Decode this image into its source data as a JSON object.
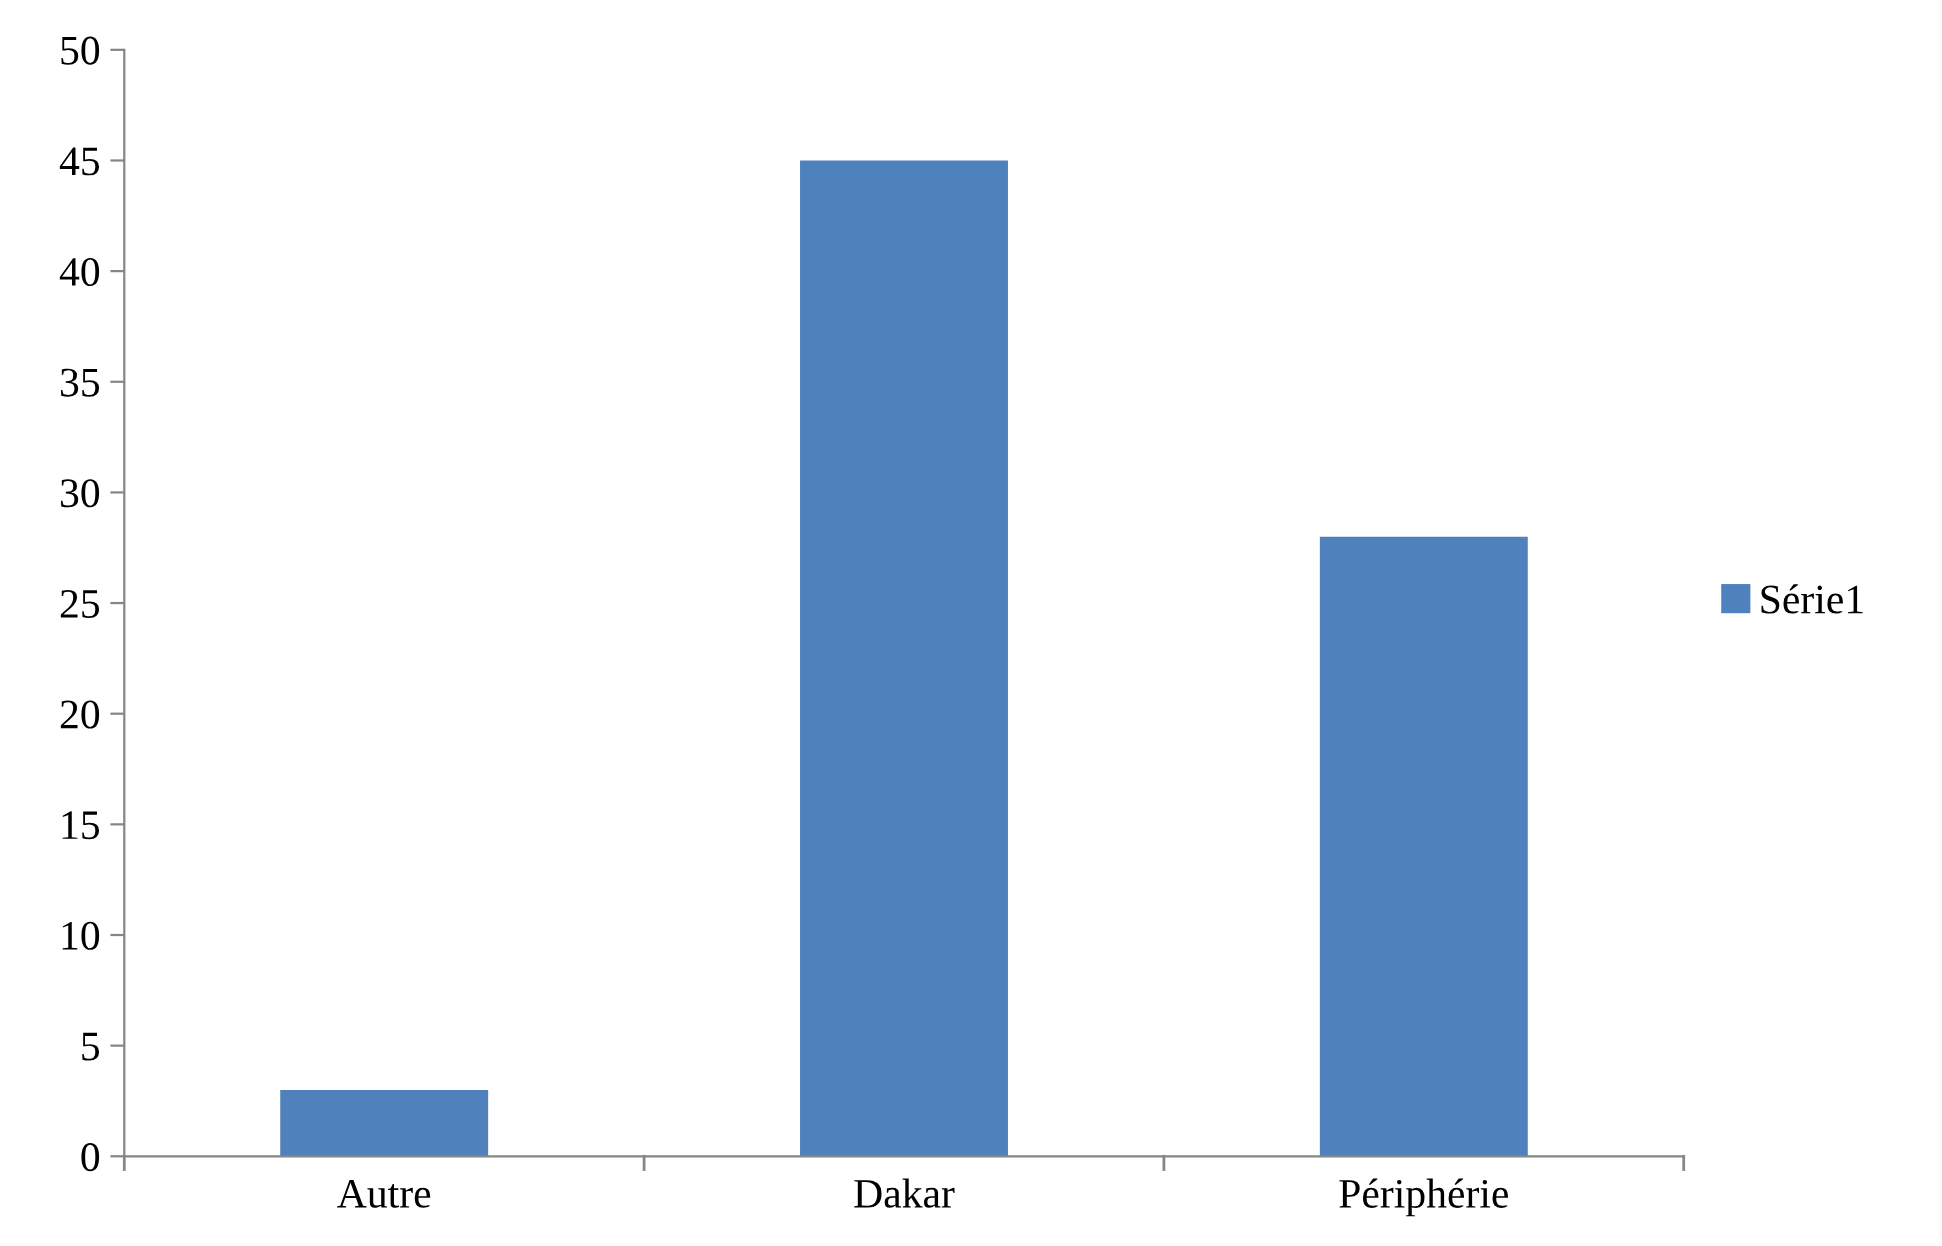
{
  "chart_data": {
    "type": "bar",
    "categories": [
      "Autre",
      "Dakar",
      "Périphérie"
    ],
    "series": [
      {
        "name": "Série1",
        "color": "#4f81bd",
        "values": [
          3,
          45,
          28
        ]
      }
    ],
    "ylim": [
      0,
      50
    ],
    "yticks": [
      0,
      5,
      10,
      15,
      20,
      25,
      30,
      35,
      40,
      45,
      50
    ],
    "grid": false,
    "legend": "right"
  }
}
